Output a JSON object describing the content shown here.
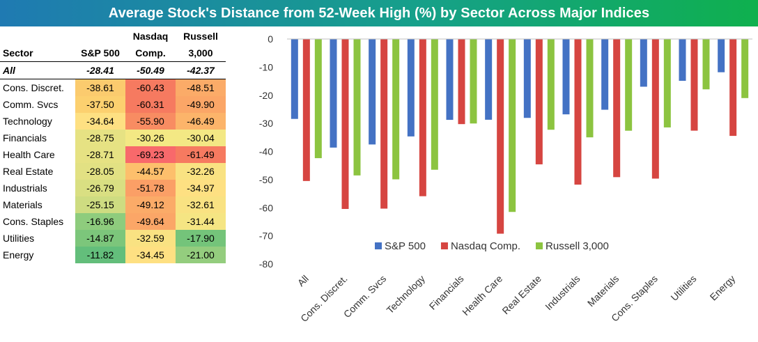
{
  "title": "Average Stock's Distance from 52-Week High (%) by Sector Across Major Indices",
  "table": {
    "headers": {
      "sector": "Sector",
      "sp500": [
        "",
        "S&P 500"
      ],
      "nasdaq": [
        "Nasdaq",
        "Comp."
      ],
      "russell": [
        "Russell",
        "3,000"
      ]
    },
    "all_row": {
      "sector": "All",
      "sp500": "-28.41",
      "nasdaq": "-50.49",
      "russell": "-42.37"
    },
    "rows": [
      {
        "sector": "Cons. Discret.",
        "sp500": "-38.61",
        "nasdaq": "-60.43",
        "russell": "-48.51",
        "colors": [
          "#fbcb6e",
          "#f67a60",
          "#fbab68"
        ]
      },
      {
        "sector": "Comm. Svcs",
        "sp500": "-37.50",
        "nasdaq": "-60.31",
        "russell": "-49.90",
        "colors": [
          "#fcd06f",
          "#f67a60",
          "#fba667"
        ]
      },
      {
        "sector": "Technology",
        "sp500": "-34.64",
        "nasdaq": "-55.90",
        "russell": "-46.49",
        "colors": [
          "#fee082",
          "#f88c62",
          "#fcb46a"
        ]
      },
      {
        "sector": "Financials",
        "sp500": "-28.75",
        "nasdaq": "-30.26",
        "russell": "-30.04",
        "colors": [
          "#e6e283",
          "#f3e884",
          "#f3e884"
        ]
      },
      {
        "sector": "Health Care",
        "sp500": "-28.71",
        "nasdaq": "-69.23",
        "russell": "-61.49",
        "colors": [
          "#e6e283",
          "#f8696b",
          "#f67a60"
        ]
      },
      {
        "sector": "Real Estate",
        "sp500": "-28.05",
        "nasdaq": "-44.57",
        "russell": "-32.26",
        "colors": [
          "#e2e183",
          "#fdbf6c",
          "#f9e282"
        ]
      },
      {
        "sector": "Industrials",
        "sp500": "-26.79",
        "nasdaq": "-51.78",
        "russell": "-34.97",
        "colors": [
          "#d9df82",
          "#fb9f66",
          "#fee082"
        ]
      },
      {
        "sector": "Materials",
        "sp500": "-25.15",
        "nasdaq": "-49.12",
        "russell": "-32.61",
        "colors": [
          "#cedc81",
          "#fbab68",
          "#f9e282"
        ]
      },
      {
        "sector": "Cons. Staples",
        "sp500": "-16.96",
        "nasdaq": "-49.64",
        "russell": "-31.44",
        "colors": [
          "#8ecc7d",
          "#fba667",
          "#f5e583"
        ]
      },
      {
        "sector": "Utilities",
        "sp500": "-14.87",
        "nasdaq": "-32.59",
        "russell": "-17.90",
        "colors": [
          "#7cc67b",
          "#f9e282",
          "#74c47a"
        ]
      },
      {
        "sector": "Energy",
        "sp500": "-11.82",
        "nasdaq": "-34.45",
        "russell": "-21.00",
        "colors": [
          "#63be7b",
          "#fee082",
          "#94cd7e"
        ]
      }
    ]
  },
  "chart_data": {
    "type": "bar",
    "title": "",
    "xlabel": "",
    "ylabel": "",
    "ylim": [
      -80,
      0
    ],
    "yticks": [
      0,
      -10,
      -20,
      -30,
      -40,
      -50,
      -60,
      -70,
      -80
    ],
    "grid": false,
    "legend": "bottom-right",
    "categories": [
      "All",
      "Cons. Discret.",
      "Comm. Svcs",
      "Technology",
      "Financials",
      "Health Care",
      "Real Estate",
      "Industrials",
      "Materials",
      "Cons. Staples",
      "Utilities",
      "Energy"
    ],
    "series": [
      {
        "name": "S&P 500",
        "color": "#4472c4",
        "values": [
          -28.41,
          -38.61,
          -37.5,
          -34.64,
          -28.75,
          -28.71,
          -28.05,
          -26.79,
          -25.15,
          -16.96,
          -14.87,
          -11.82
        ]
      },
      {
        "name": "Nasdaq Comp.",
        "color": "#d64541",
        "values": [
          -50.49,
          -60.43,
          -60.31,
          -55.9,
          -30.26,
          -69.23,
          -44.57,
          -51.78,
          -49.12,
          -49.64,
          -32.59,
          -34.45
        ]
      },
      {
        "name": "Russell 3,000",
        "color": "#8cc440",
        "values": [
          -42.37,
          -48.51,
          -49.9,
          -46.49,
          -30.04,
          -61.49,
          -32.26,
          -34.97,
          -32.61,
          -31.44,
          -17.9,
          -21.0
        ]
      }
    ]
  }
}
